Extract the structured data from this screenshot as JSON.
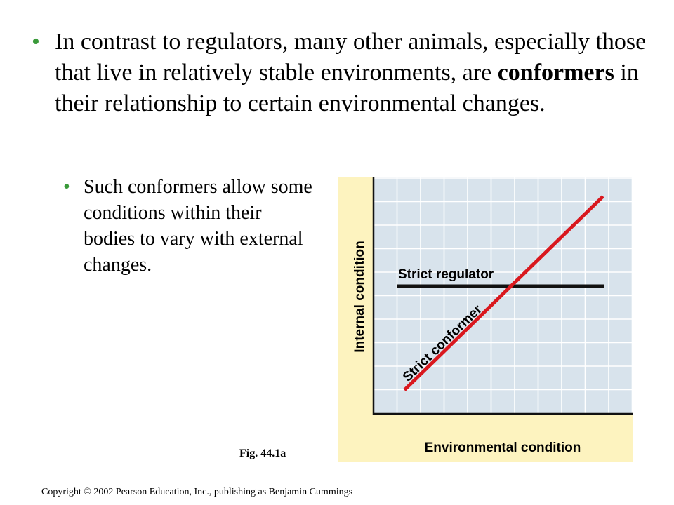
{
  "main_bullet": {
    "text_before": "In contrast to regulators, many other animals, especially those that live in relatively stable environments, are ",
    "bold_term": "conformers",
    "text_after": " in their relationship to certain environmental changes."
  },
  "sub_bullet": {
    "text": "Such conformers allow some conditions within their bodies to vary with external changes."
  },
  "figure": {
    "caption": "Fig. 44.1a",
    "colors": {
      "panel_background": "#fdf3bf",
      "plot_background": "#d8e3ec",
      "grid": "#ffffff",
      "regulator_line": "#111111",
      "conformer_line": "#d9181e"
    },
    "labels": {
      "x_axis": "Environmental condition",
      "y_axis": "Internal condition",
      "regulator": "Strict regulator",
      "conformer": "Strict conformer"
    }
  },
  "footer": {
    "copyright": "Copyright © 2002 Pearson Education, Inc., publishing as Benjamin Cummings"
  }
}
